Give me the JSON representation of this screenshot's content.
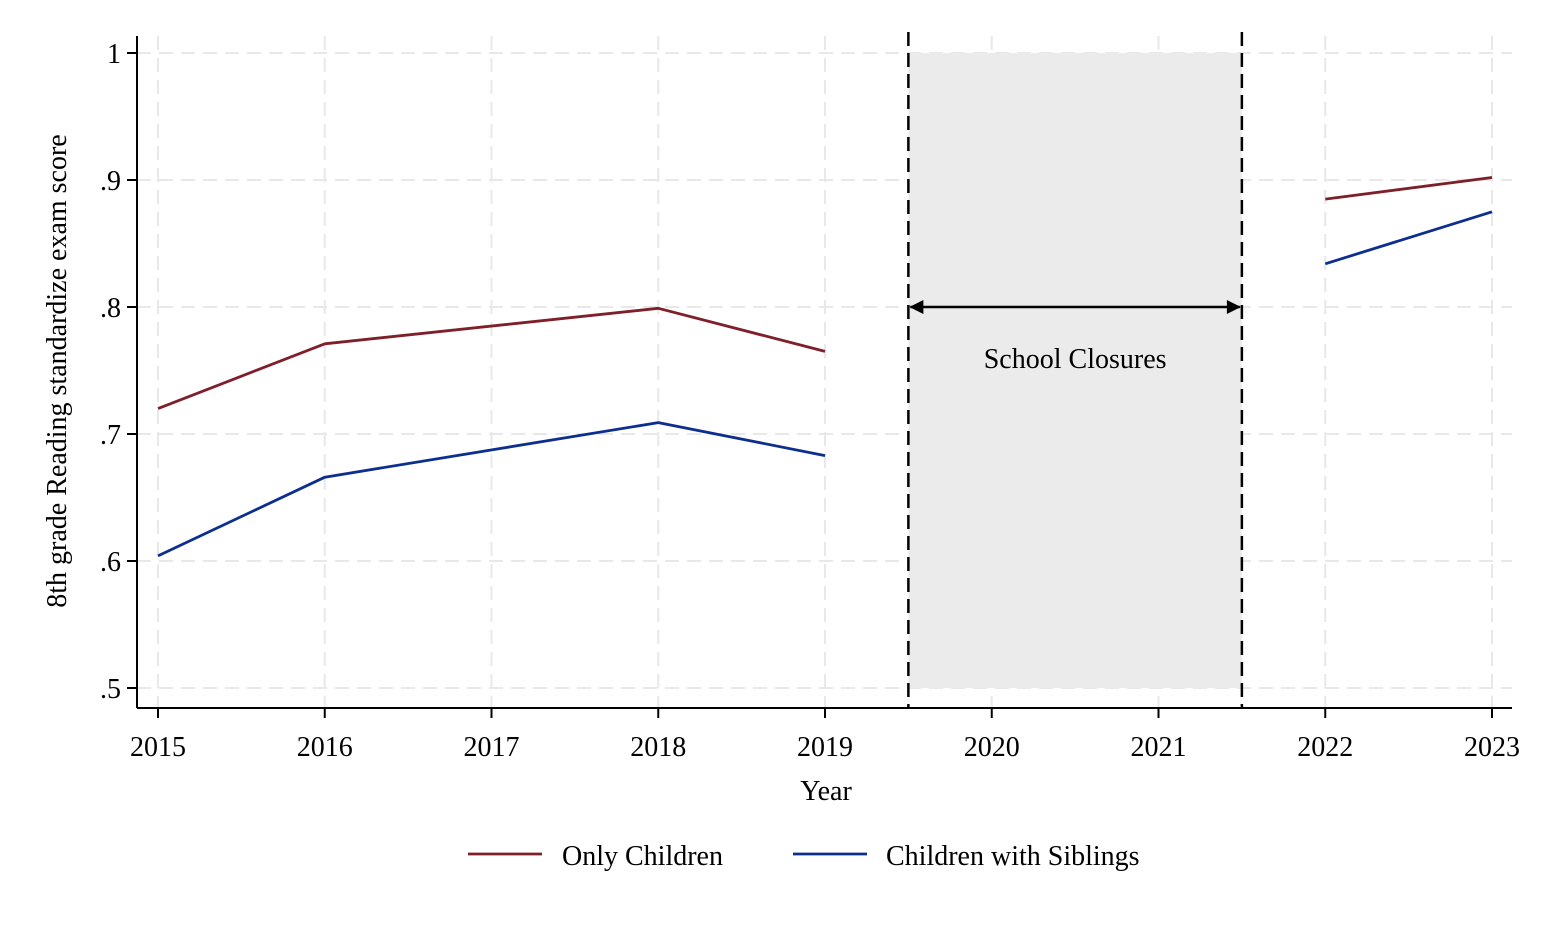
{
  "chart_data": {
    "type": "line",
    "xlabel": "Year",
    "ylabel": "8th grade Reading standardize exam score",
    "xlim": [
      2015,
      2023
    ],
    "ylim": [
      0.5,
      1.0
    ],
    "x_ticks": [
      2015,
      2016,
      2017,
      2018,
      2019,
      2020,
      2021,
      2022,
      2023
    ],
    "x_tick_labels": [
      "2015",
      "2016",
      "2017",
      "2018",
      "2019",
      "2020",
      "2021",
      "2022",
      "2023"
    ],
    "y_ticks": [
      0.5,
      0.6,
      0.7,
      0.8,
      0.9,
      1.0
    ],
    "y_tick_labels": [
      ".5",
      ".6",
      ".7",
      ".8",
      ".9",
      "1"
    ],
    "grid": true,
    "legend_position": "bottom",
    "series": [
      {
        "name": "Only Children",
        "color": "#7f1f2a",
        "segments": [
          [
            [
              2015,
              0.72
            ],
            [
              2016,
              0.771
            ],
            [
              2018,
              0.799
            ],
            [
              2019,
              0.765
            ]
          ],
          [
            [
              2022,
              0.885
            ],
            [
              2023,
              0.902
            ]
          ]
        ]
      },
      {
        "name": "Children with Siblings",
        "color": "#0c2f8f",
        "segments": [
          [
            [
              2015,
              0.604
            ],
            [
              2016,
              0.666
            ],
            [
              2018,
              0.709
            ],
            [
              2019,
              0.683
            ]
          ],
          [
            [
              2022,
              0.834
            ],
            [
              2023,
              0.875
            ]
          ]
        ]
      }
    ],
    "shaded_region": {
      "x_range": [
        2019.5,
        2021.5
      ],
      "y_range": [
        0.5,
        1.0
      ],
      "color": "#ebebeb",
      "label": "School Closures",
      "arrow_y": 0.8,
      "label_y": 0.76
    }
  }
}
